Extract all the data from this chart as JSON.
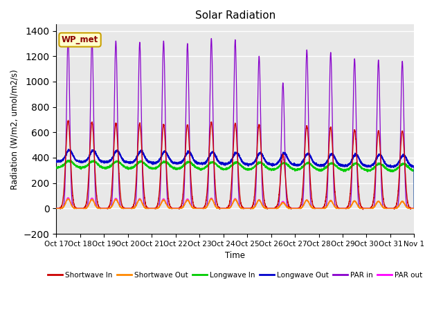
{
  "title": "Solar Radiation",
  "ylabel": "Radiation (W/m2, umol/m2/s)",
  "xlabel": "Time",
  "ylim": [
    -200,
    1450
  ],
  "background_color": "#e8e8e8",
  "plot_bg_color": "#e8e8e8",
  "grid_color": "white",
  "annotation_text": "WP_met",
  "annotation_bg": "#ffffcc",
  "annotation_border": "#c8a000",
  "tick_labels": [
    "Oct 17",
    "Oct 18",
    "Oct 19",
    "Oct 20",
    "Oct 21",
    "Oct 22",
    "Oct 23",
    "Oct 24",
    "Oct 25",
    "Oct 26",
    "Oct 27",
    "Oct 28",
    "Oct 29",
    "Oct 30",
    "Oct 31",
    "Nov 1"
  ],
  "legend_entries": [
    "Shortwave In",
    "Shortwave Out",
    "Longwave In",
    "Longwave Out",
    "PAR in",
    "PAR out"
  ],
  "legend_colors": [
    "#cc0000",
    "#ff8800",
    "#00cc00",
    "#0000cc",
    "#8800cc",
    "#ff00ff"
  ],
  "n_days": 15,
  "shortwave_in_peaks": [
    690,
    680,
    670,
    670,
    660,
    660,
    680,
    670,
    660,
    420,
    650,
    640,
    620,
    610,
    610
  ],
  "shortwave_out_peaks": [
    75,
    70,
    70,
    70,
    65,
    65,
    75,
    70,
    65,
    45,
    65,
    60,
    58,
    55,
    55
  ],
  "par_in_peaks": [
    1350,
    1340,
    1320,
    1310,
    1320,
    1300,
    1340,
    1330,
    1200,
    990,
    1250,
    1230,
    1180,
    1170,
    1160
  ],
  "par_out_peaks": [
    85,
    82,
    80,
    78,
    76,
    75,
    82,
    78,
    70,
    55,
    68,
    65,
    60,
    58,
    56
  ],
  "longwave_in_base": 315,
  "longwave_out_base": 360,
  "sw_sigma": 0.1,
  "par_sigma": 0.065,
  "par_out_sigma": 0.1
}
